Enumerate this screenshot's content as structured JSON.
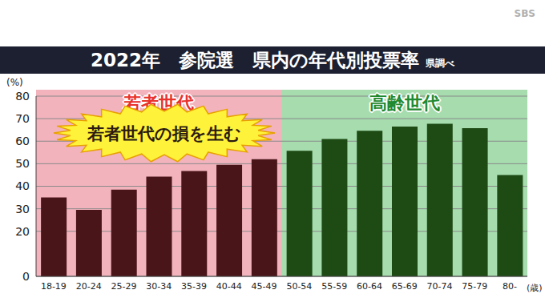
{
  "chart_data": {
    "type": "bar",
    "title": "2022年　参院選　県内の年代別投票率",
    "source": "県調べ",
    "watermark": "SBS",
    "y_label": "(%)",
    "x_label": "(歳)",
    "categories": [
      "18-19",
      "20-24",
      "25-29",
      "30-34",
      "35-39",
      "40-44",
      "45-49",
      "50-54",
      "55-59",
      "60-64",
      "65-69",
      "70-74",
      "75-79",
      "80-"
    ],
    "values": [
      35,
      29.5,
      38.5,
      44.3,
      46.8,
      49.5,
      52,
      55.7,
      61,
      64.6,
      66.5,
      67.7,
      65.8,
      45
    ],
    "colors": [
      "#4a1519",
      "#4a1519",
      "#4a1519",
      "#4a1519",
      "#4a1519",
      "#4a1519",
      "#4a1519",
      "#1e4a14",
      "#1e4a14",
      "#1e4a14",
      "#1e4a14",
      "#1e4a14",
      "#1e4a14",
      "#1e4a14"
    ],
    "ylim": [
      0,
      80
    ],
    "yticks": [
      0,
      20,
      30,
      40,
      50,
      60,
      70,
      80
    ],
    "grid": true,
    "groups": [
      {
        "label": "若者世代",
        "color": "#f2b3bd",
        "from": "18-19",
        "to": "45-49"
      },
      {
        "label": "高齢世代",
        "color": "#a6dcae",
        "from": "50-54",
        "to": "80-"
      }
    ],
    "annotations": [
      "若者世代の損を生む"
    ]
  }
}
